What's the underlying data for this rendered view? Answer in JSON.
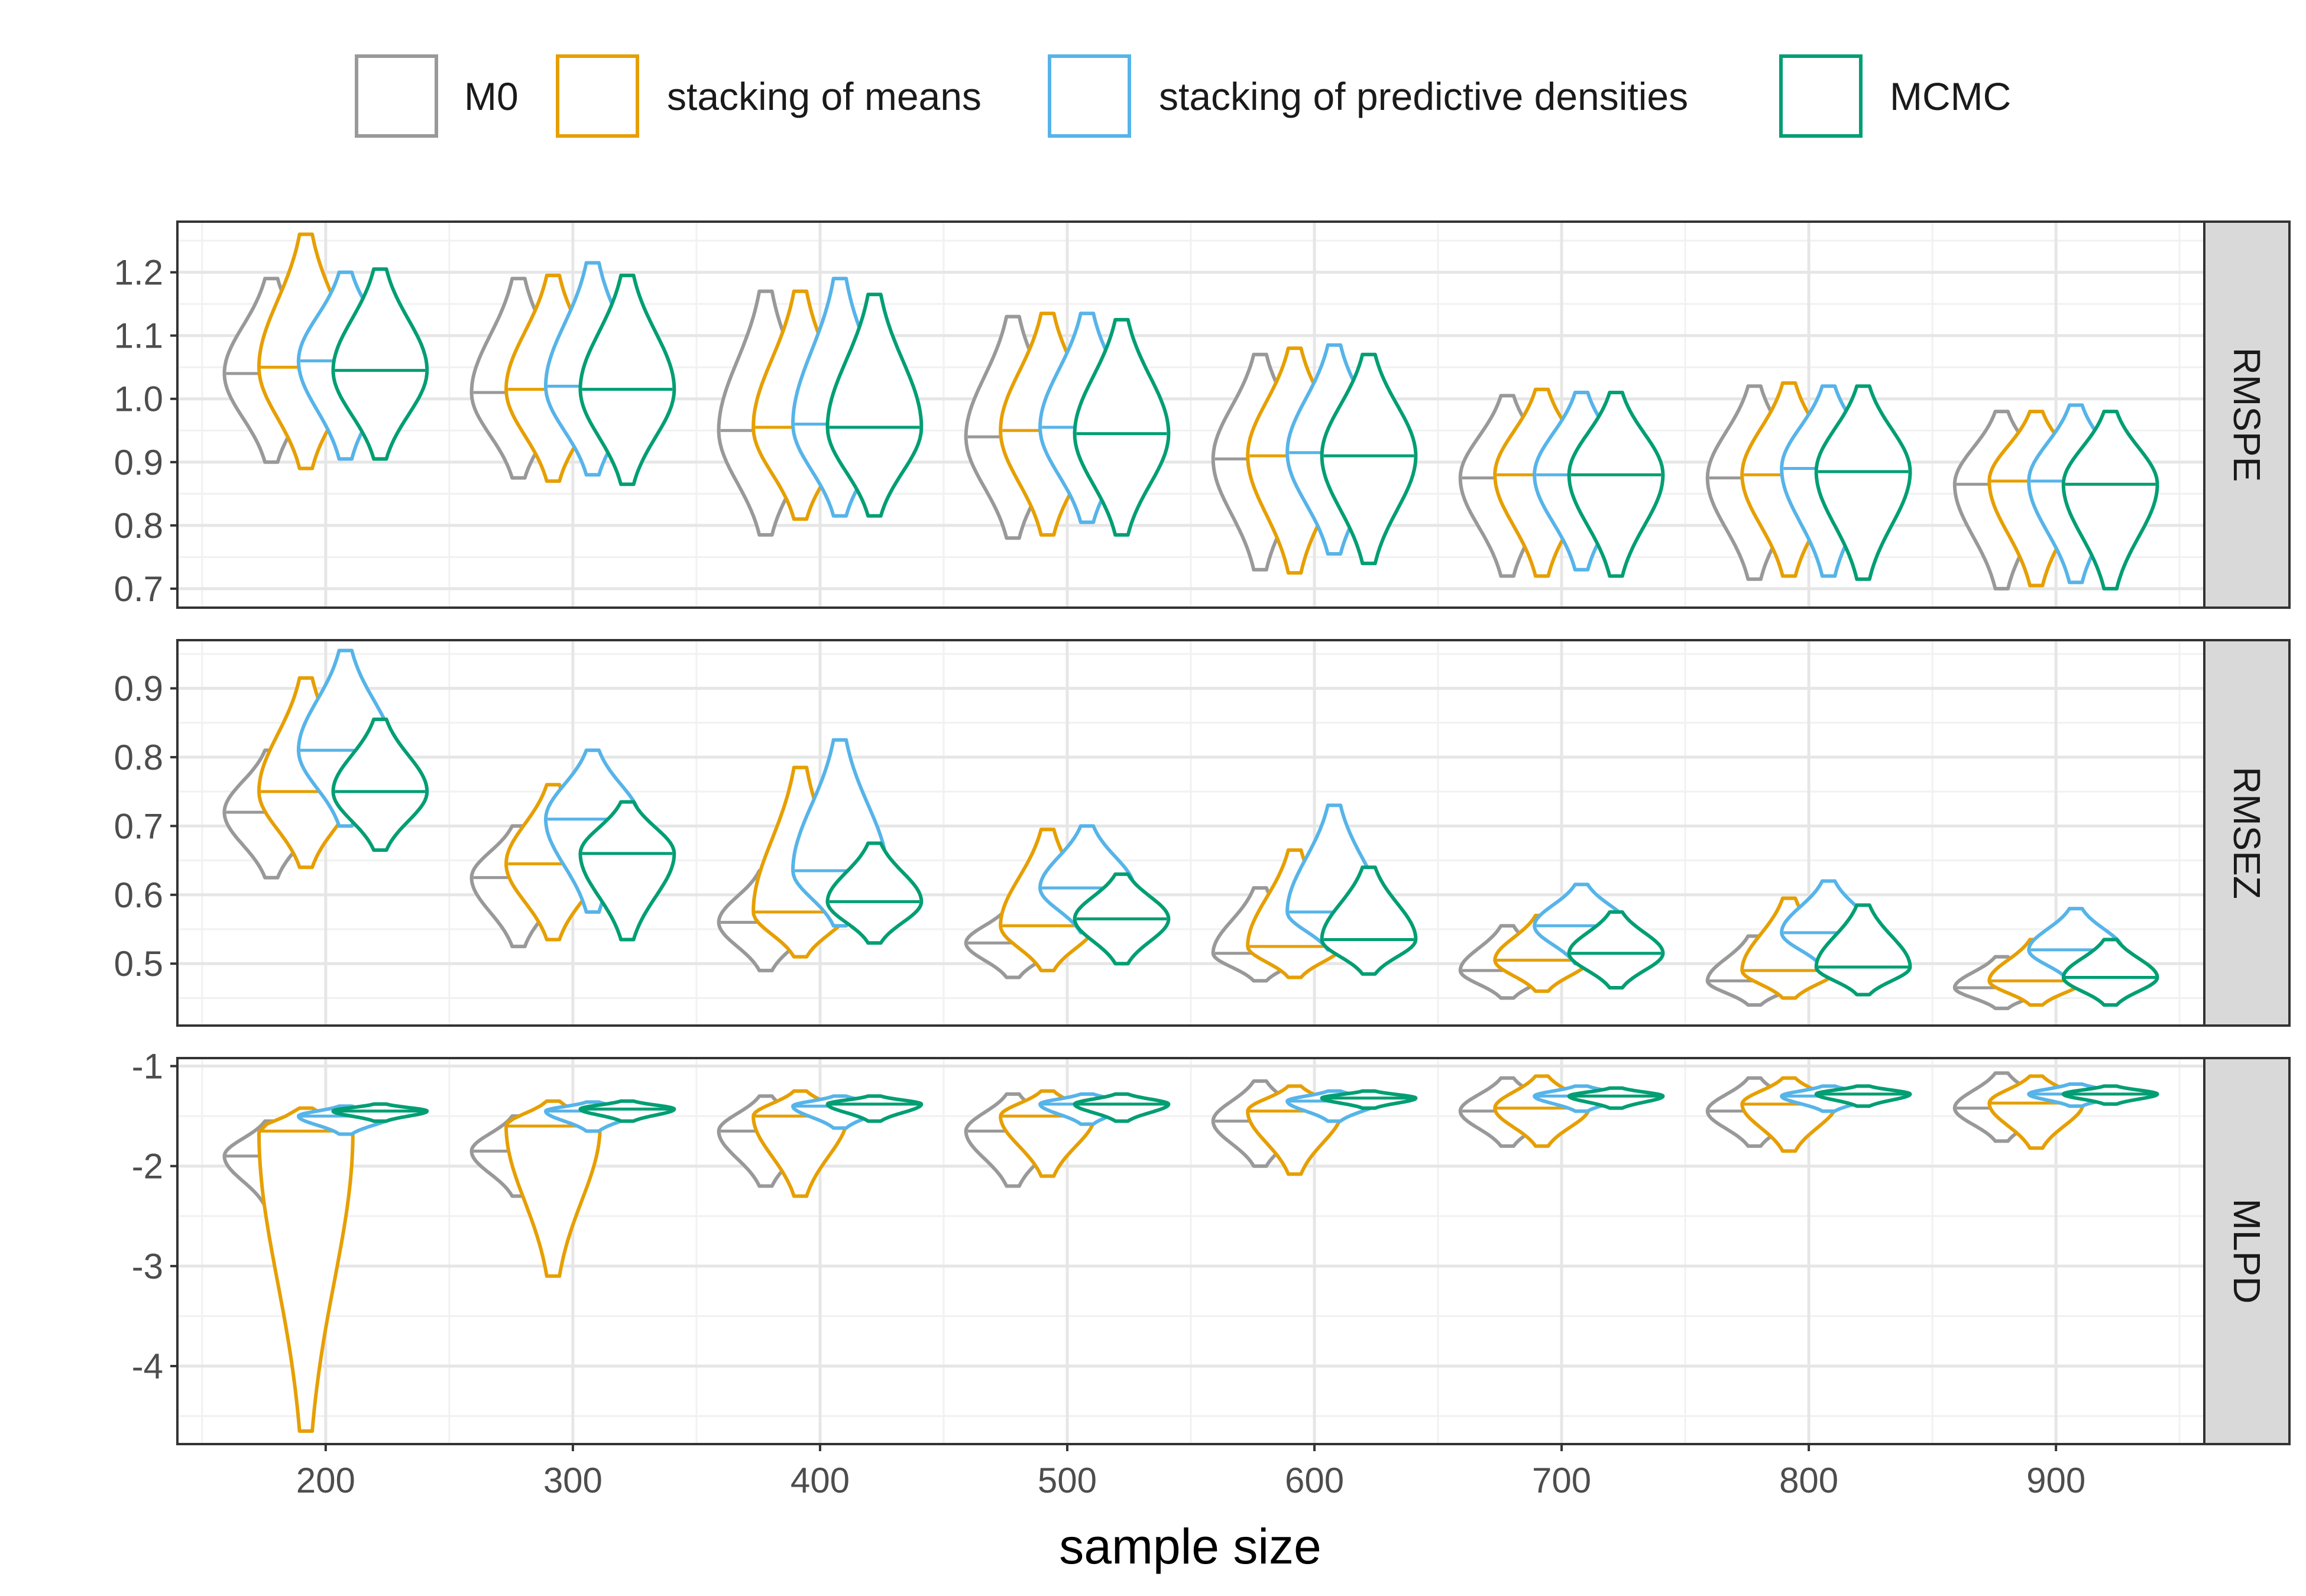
{
  "chart_data": {
    "type": "violin",
    "xlabel": "sample size",
    "x_ticks": [
      200,
      300,
      400,
      500,
      600,
      700,
      800,
      900
    ],
    "xlim": [
      140,
      960
    ],
    "sample_sizes": [
      200,
      300,
      400,
      500,
      600,
      700,
      800,
      900
    ],
    "legend": {
      "position": "top",
      "entries": [
        {
          "name": "M0",
          "color": "#999999"
        },
        {
          "name": "stacking of means",
          "color": "#E69F00"
        },
        {
          "name": "stacking of predictive densities",
          "color": "#56B4E9"
        },
        {
          "name": "MCMC",
          "color": "#009E73"
        }
      ]
    },
    "panels": [
      {
        "label": "RMSPE",
        "ylim": [
          0.67,
          1.28
        ],
        "y_ticks": [
          0.7,
          0.8,
          0.9,
          1.0,
          1.1,
          1.2
        ],
        "y_tick_labels": [
          "0.7",
          "0.8",
          "0.9",
          "1.0",
          "1.1",
          "1.2"
        ],
        "series": [
          {
            "name": "M0",
            "median": [
              1.04,
              1.01,
              0.95,
              0.94,
              0.905,
              0.875,
              0.875,
              0.865
            ],
            "min": [
              0.9,
              0.875,
              0.785,
              0.78,
              0.73,
              0.72,
              0.715,
              0.7
            ],
            "max": [
              1.19,
              1.19,
              1.17,
              1.13,
              1.07,
              1.005,
              1.02,
              0.98
            ]
          },
          {
            "name": "stacking of means",
            "median": [
              1.05,
              1.015,
              0.955,
              0.95,
              0.91,
              0.88,
              0.88,
              0.87
            ],
            "min": [
              0.89,
              0.87,
              0.81,
              0.785,
              0.725,
              0.72,
              0.72,
              0.705
            ],
            "max": [
              1.26,
              1.195,
              1.17,
              1.135,
              1.08,
              1.015,
              1.025,
              0.98
            ]
          },
          {
            "name": "stacking of predictive densities",
            "median": [
              1.06,
              1.02,
              0.96,
              0.955,
              0.915,
              0.88,
              0.89,
              0.87
            ],
            "min": [
              0.905,
              0.88,
              0.815,
              0.805,
              0.755,
              0.73,
              0.72,
              0.71
            ],
            "max": [
              1.2,
              1.215,
              1.19,
              1.135,
              1.085,
              1.01,
              1.02,
              0.99
            ]
          },
          {
            "name": "MCMC",
            "median": [
              1.045,
              1.015,
              0.955,
              0.945,
              0.91,
              0.88,
              0.885,
              0.865
            ],
            "min": [
              0.905,
              0.865,
              0.815,
              0.785,
              0.74,
              0.72,
              0.715,
              0.7
            ],
            "max": [
              1.205,
              1.195,
              1.165,
              1.125,
              1.07,
              1.01,
              1.02,
              0.98
            ]
          }
        ]
      },
      {
        "label": "RMSEZ",
        "ylim": [
          0.41,
          0.97
        ],
        "y_ticks": [
          0.5,
          0.6,
          0.7,
          0.8,
          0.9
        ],
        "y_tick_labels": [
          "0.5",
          "0.6",
          "0.7",
          "0.8",
          "0.9"
        ],
        "series": [
          {
            "name": "M0",
            "median": [
              0.72,
              0.625,
              0.56,
              0.53,
              0.515,
              0.49,
              0.475,
              0.465
            ],
            "min": [
              0.625,
              0.525,
              0.49,
              0.48,
              0.475,
              0.45,
              0.44,
              0.435
            ],
            "max": [
              0.81,
              0.7,
              0.635,
              0.58,
              0.61,
              0.555,
              0.54,
              0.51
            ]
          },
          {
            "name": "stacking of means",
            "median": [
              0.75,
              0.645,
              0.575,
              0.555,
              0.525,
              0.505,
              0.49,
              0.475
            ],
            "min": [
              0.64,
              0.535,
              0.51,
              0.49,
              0.48,
              0.46,
              0.45,
              0.44
            ],
            "max": [
              0.915,
              0.76,
              0.785,
              0.695,
              0.665,
              0.57,
              0.595,
              0.535
            ]
          },
          {
            "name": "stacking of predictive densities",
            "median": [
              0.81,
              0.71,
              0.635,
              0.61,
              0.575,
              0.555,
              0.545,
              0.52
            ],
            "min": [
              0.7,
              0.575,
              0.555,
              0.545,
              0.52,
              0.5,
              0.495,
              0.475
            ],
            "max": [
              0.955,
              0.81,
              0.825,
              0.7,
              0.73,
              0.615,
              0.62,
              0.58
            ]
          },
          {
            "name": "MCMC",
            "median": [
              0.75,
              0.66,
              0.59,
              0.565,
              0.535,
              0.515,
              0.495,
              0.48
            ],
            "min": [
              0.665,
              0.535,
              0.53,
              0.5,
              0.485,
              0.465,
              0.455,
              0.44
            ],
            "max": [
              0.855,
              0.735,
              0.675,
              0.63,
              0.64,
              0.575,
              0.585,
              0.535
            ]
          }
        ]
      },
      {
        "label": "MLPD",
        "ylim": [
          -4.78,
          -0.92
        ],
        "y_ticks": [
          -4,
          -3,
          -2,
          -1
        ],
        "y_tick_labels": [
          "-4",
          "-3",
          "-2",
          "-1"
        ],
        "series": [
          {
            "name": "M0",
            "median": [
              -1.9,
              -1.85,
              -1.65,
              -1.65,
              -1.55,
              -1.45,
              -1.45,
              -1.42
            ],
            "min": [
              -2.4,
              -2.3,
              -2.2,
              -2.2,
              -2.0,
              -1.8,
              -1.8,
              -1.75
            ],
            "max": [
              -1.55,
              -1.5,
              -1.3,
              -1.28,
              -1.15,
              -1.12,
              -1.12,
              -1.07
            ]
          },
          {
            "name": "stacking of means",
            "median": [
              -1.65,
              -1.6,
              -1.5,
              -1.5,
              -1.45,
              -1.42,
              -1.38,
              -1.37
            ],
            "min": [
              -4.65,
              -3.1,
              -2.3,
              -2.1,
              -2.08,
              -1.8,
              -1.85,
              -1.82
            ],
            "max": [
              -1.42,
              -1.35,
              -1.25,
              -1.25,
              -1.2,
              -1.1,
              -1.12,
              -1.1
            ]
          },
          {
            "name": "stacking of predictive densities",
            "median": [
              -1.5,
              -1.45,
              -1.4,
              -1.38,
              -1.35,
              -1.3,
              -1.3,
              -1.28
            ],
            "min": [
              -1.68,
              -1.65,
              -1.62,
              -1.58,
              -1.55,
              -1.45,
              -1.45,
              -1.4
            ],
            "max": [
              -1.4,
              -1.36,
              -1.3,
              -1.28,
              -1.25,
              -1.2,
              -1.2,
              -1.18
            ]
          },
          {
            "name": "MCMC",
            "median": [
              -1.45,
              -1.43,
              -1.38,
              -1.38,
              -1.32,
              -1.3,
              -1.28,
              -1.28
            ],
            "min": [
              -1.55,
              -1.55,
              -1.55,
              -1.55,
              -1.42,
              -1.42,
              -1.4,
              -1.38
            ],
            "max": [
              -1.38,
              -1.35,
              -1.3,
              -1.28,
              -1.25,
              -1.22,
              -1.2,
              -1.2
            ]
          }
        ]
      }
    ]
  }
}
